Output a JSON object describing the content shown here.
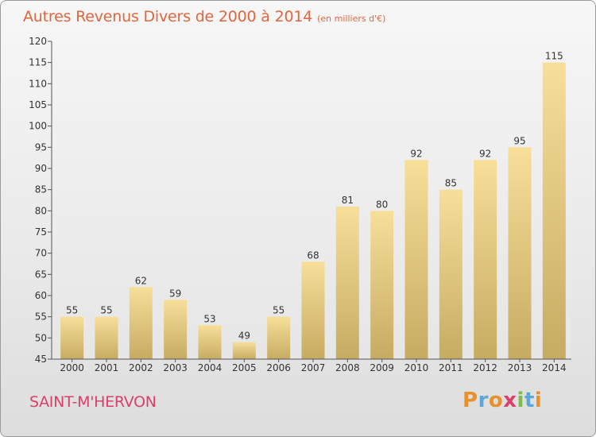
{
  "header": {
    "title": "Autres Revenus Divers de 2000 à 2014",
    "unit": "(en milliers d'€)"
  },
  "footer": {
    "commune": "SAINT-M'HERVON",
    "logo": "Proxiti"
  },
  "colors": {
    "title": "#e0663e",
    "commune": "#d9406a",
    "bar_top": "#f7df9a",
    "bar_bottom": "#c6ab62",
    "logo_letters": [
      "#e8902b",
      "#5aa7d8",
      "#e8902b",
      "#d9406a",
      "#7cbc4a",
      "#5aa7d8",
      "#e8902b"
    ]
  },
  "chart_data": {
    "type": "bar",
    "title": "Autres Revenus Divers de 2000 à 2014",
    "xlabel": "",
    "ylabel": "",
    "categories": [
      "2000",
      "2001",
      "2002",
      "2003",
      "2004",
      "2005",
      "2006",
      "2007",
      "2008",
      "2009",
      "2010",
      "2011",
      "2012",
      "2013",
      "2014"
    ],
    "values": [
      55,
      55,
      62,
      59,
      53,
      49,
      55,
      68,
      81,
      80,
      92,
      85,
      92,
      95,
      115
    ],
    "ylim": [
      45,
      120
    ],
    "yticks": [
      45,
      50,
      55,
      60,
      65,
      70,
      75,
      80,
      85,
      90,
      95,
      100,
      105,
      110,
      115,
      120
    ],
    "grid": false,
    "legend": "none"
  }
}
